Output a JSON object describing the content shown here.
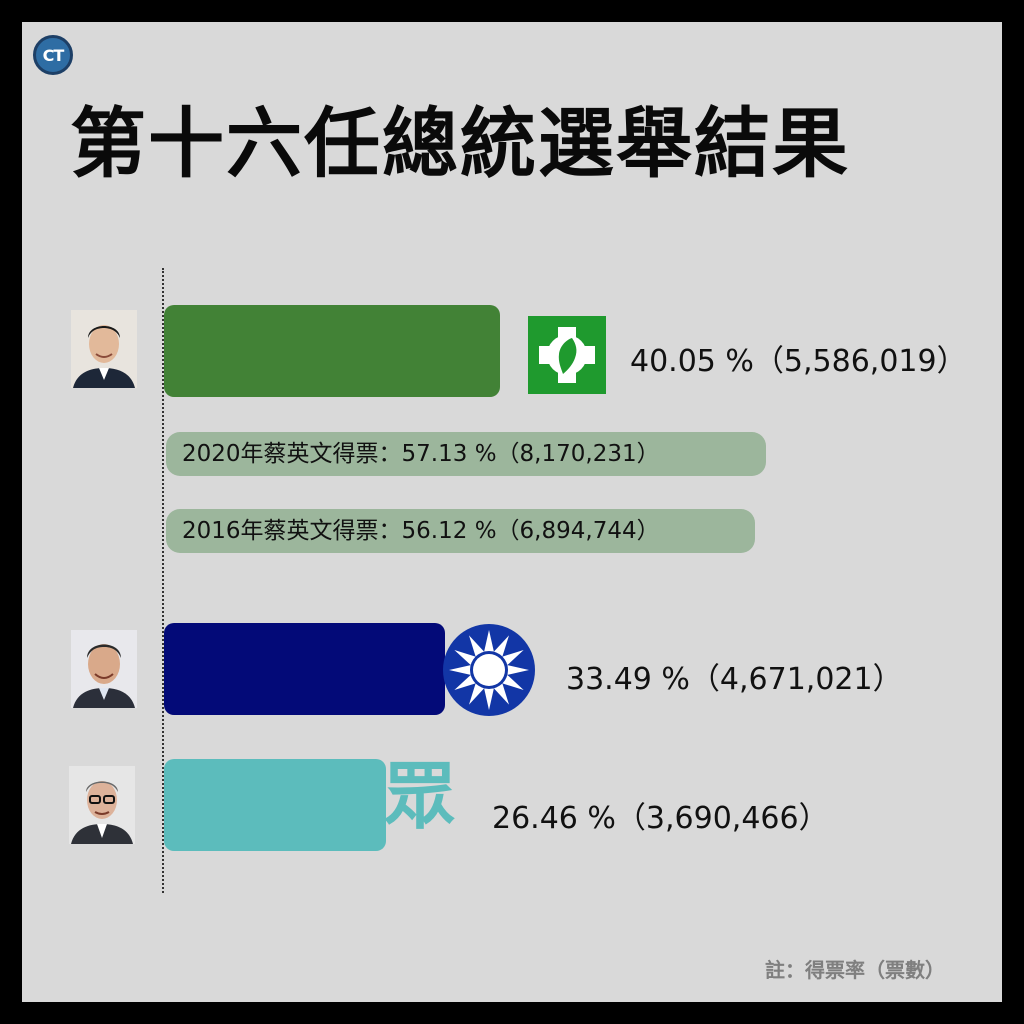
{
  "brand": {
    "logo_text": "CT"
  },
  "title": "第十六任總統選舉結果",
  "note": "註：得票率（票數）",
  "colors": {
    "background": "#d9d9d9",
    "dpp_green": "#428236",
    "kmt_navy": "#030a78",
    "tpp_teal": "#5cbcbc",
    "reference_pill": "#9cb69c"
  },
  "emblems": {
    "candidate_1": "dpp-flag-icon",
    "candidate_2": "kmt-sun-emblem-icon",
    "candidate_3_text": "眾"
  },
  "chart_data": {
    "type": "bar",
    "orientation": "horizontal",
    "title": "第十六任總統選舉結果",
    "xlim": [
      0,
      60
    ],
    "grid": false,
    "series": [
      {
        "values": [
          40.05,
          33.49,
          26.46
        ],
        "votes": [
          5586019,
          4671021,
          3690466
        ],
        "labels": [
          "40.05 %（5,586,019）",
          "33.49 %（4,671,021）",
          "26.46 %（3,690,466）"
        ],
        "colors": [
          "#428236",
          "#030a78",
          "#5cbcbc"
        ]
      }
    ],
    "references": [
      {
        "label": "2020年蔡英文得票：57.13 %（8,170,231）",
        "value": 57.13,
        "votes": 8170231
      },
      {
        "label": "2016年蔡英文得票：56.12 %（6,894,744）",
        "value": 56.12,
        "votes": 6894744
      }
    ]
  }
}
